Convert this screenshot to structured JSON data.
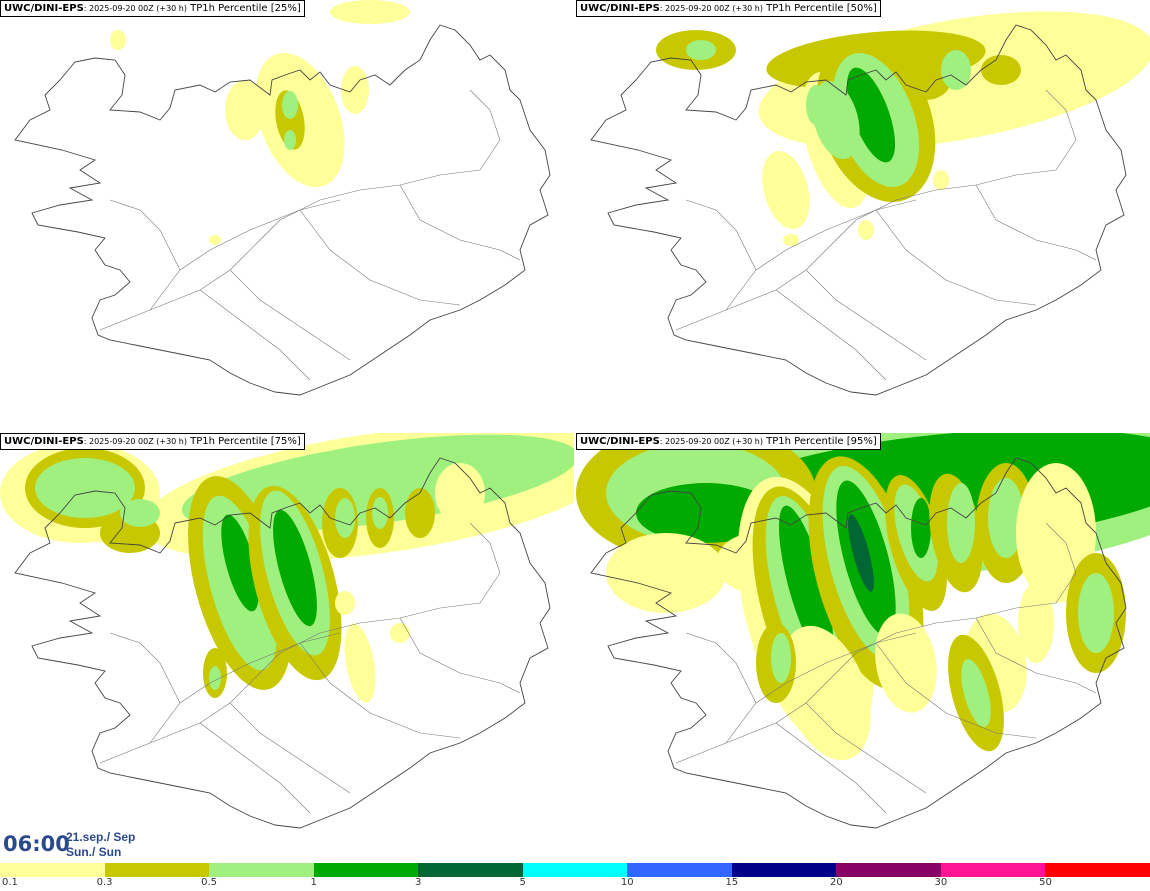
{
  "panels": [
    {
      "model": "UWC/DINI-EPS",
      "run": ": 2025-09-20 00Z (+30 h)",
      "param": " TP1h Percentile [25%]",
      "coverage": "light"
    },
    {
      "model": "UWC/DINI-EPS",
      "run": ": 2025-09-20 00Z (+30 h)",
      "param": " TP1h Percentile [50%]",
      "coverage": "medium"
    },
    {
      "model": "UWC/DINI-EPS",
      "run": ": 2025-09-20 00Z (+30 h)",
      "param": " TP1h Percentile [75%]",
      "coverage": "heavy"
    },
    {
      "model": "UWC/DINI-EPS",
      "run": ": 2025-09-20 00Z (+30 h)",
      "param": " TP1h Percentile [95%]",
      "coverage": "very-heavy"
    }
  ],
  "valid_time": {
    "time": "06:00",
    "date_line1": "21.sep./ Sep",
    "date_line2": "Sun./ Sun"
  },
  "legend": {
    "colors": [
      "#ffff99",
      "#c8c800",
      "#a0f080",
      "#00aa00",
      "#006633",
      "#00ffff",
      "#3366ff",
      "#000088",
      "#880066",
      "#ff1493",
      "#ff0000"
    ],
    "labels": [
      "0.1",
      "0.3",
      "0.5",
      "1",
      "3",
      "5",
      "10",
      "15",
      "20",
      "30",
      "50"
    ]
  }
}
